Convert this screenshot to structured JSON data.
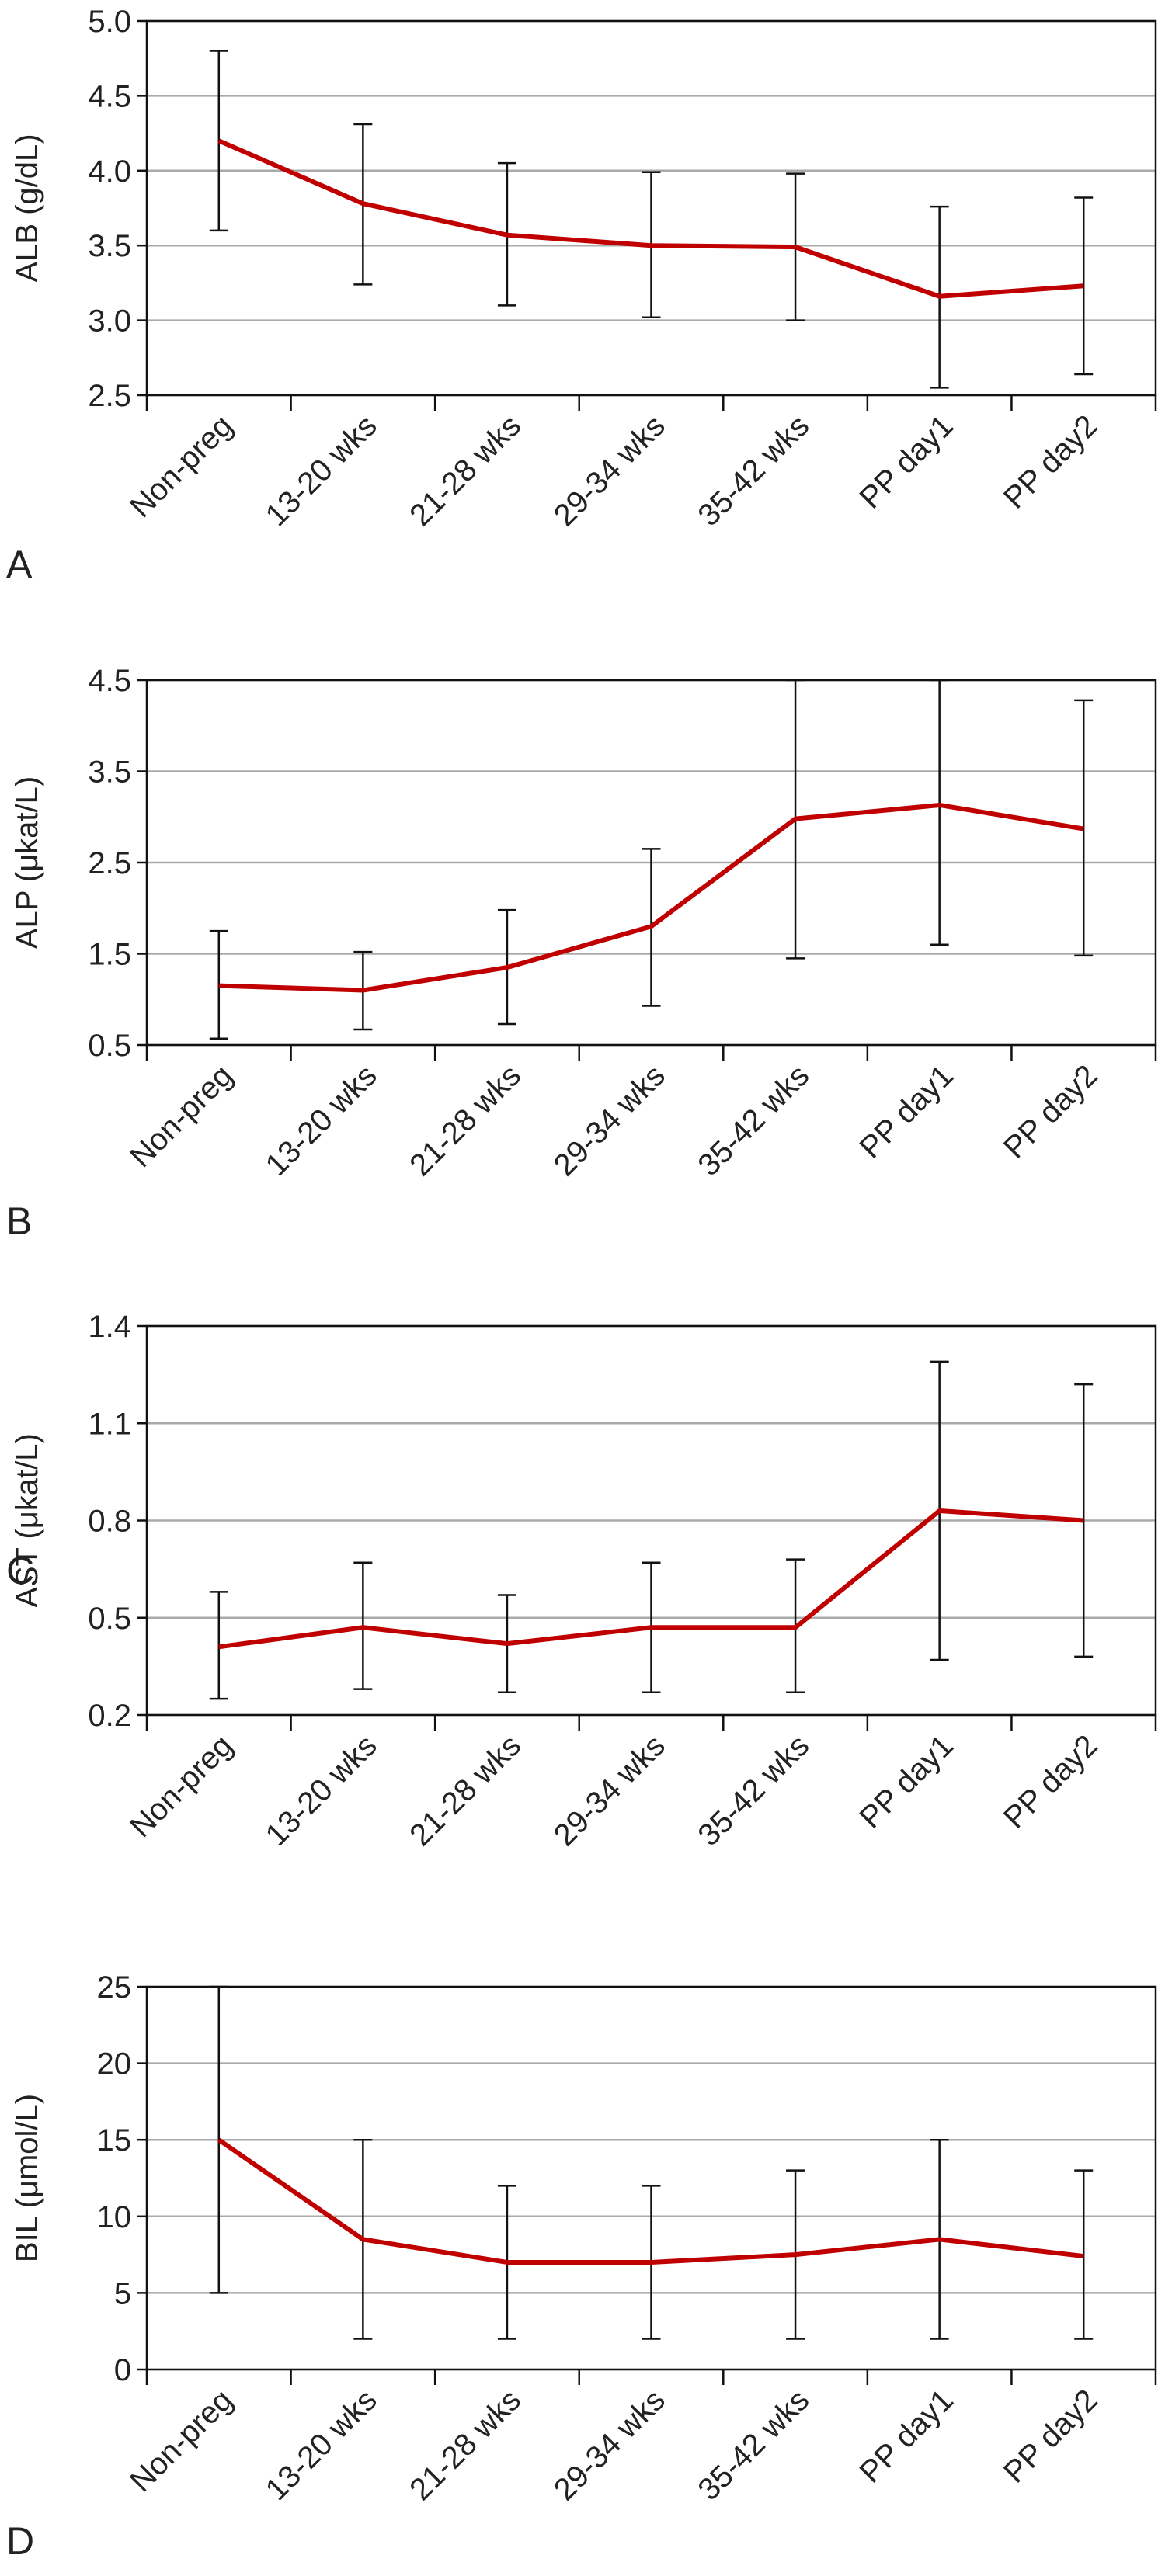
{
  "chart_data": [
    {
      "type": "line",
      "panel_label": "A",
      "y_label": "ALB (g/dL)",
      "color": "#c00000",
      "grid": true,
      "categories": [
        "Non-preg",
        "13-20 wks",
        "21-28 wks",
        "29-34 wks",
        "35-42 wks",
        "PP day1",
        "PP day2"
      ],
      "values": [
        4.2,
        3.78,
        3.57,
        3.5,
        3.49,
        3.16,
        3.23
      ],
      "lower": [
        3.6,
        3.24,
        3.1,
        3.02,
        3.0,
        2.55,
        2.64
      ],
      "upper": [
        4.8,
        4.31,
        4.05,
        3.99,
        3.98,
        3.76,
        3.82
      ],
      "ylim": [
        2.5,
        5.0
      ],
      "yticks": [
        2.5,
        {
          "value": 3,
          "label": "3.0"
        },
        3.5,
        {
          "value": 4,
          "label": "4.0"
        },
        4.5,
        {
          "value": 5,
          "label": "5.0"
        }
      ]
    },
    {
      "type": "line",
      "panel_label": "B",
      "y_label": "ALP (μkat/L)",
      "color": "#c00000",
      "grid": true,
      "categories": [
        "Non-preg",
        "13-20 wks",
        "21-28 wks",
        "29-34 wks",
        "35-42 wks",
        "PP day1",
        "PP day2"
      ],
      "values": [
        1.15,
        1.1,
        1.35,
        1.8,
        2.98,
        3.13,
        2.87
      ],
      "lower": [
        0.57,
        0.67,
        0.73,
        0.93,
        1.45,
        1.6,
        1.48
      ],
      "upper": [
        1.75,
        1.52,
        1.98,
        2.65,
        4.5,
        4.5,
        4.28
      ],
      "ylim": [
        0.5,
        4.5
      ],
      "yticks": [
        0.5,
        1.5,
        2.5,
        3.5,
        4.5
      ]
    },
    {
      "type": "line",
      "panel_label": "C",
      "y_label": "AST (μkat/L)",
      "color": "#c00000",
      "grid": true,
      "categories": [
        "Non-preg",
        "13-20 wks",
        "21-28 wks",
        "29-34 wks",
        "35-42 wks",
        "PP day1",
        "PP day2"
      ],
      "values": [
        0.41,
        0.47,
        0.42,
        0.47,
        0.47,
        0.83,
        0.8
      ],
      "lower": [
        0.25,
        0.28,
        0.27,
        0.27,
        0.27,
        0.37,
        0.38
      ],
      "upper": [
        0.58,
        0.67,
        0.57,
        0.67,
        0.68,
        1.29,
        1.22
      ],
      "ylim": [
        0.2,
        1.4
      ],
      "yticks": [
        0.2,
        0.5,
        0.8,
        1.1,
        1.4
      ]
    },
    {
      "type": "line",
      "panel_label": "D",
      "y_label": "BIL (μmol/L)",
      "color": "#c00000",
      "grid": true,
      "categories": [
        "Non-preg",
        "13-20 wks",
        "21-28 wks",
        "29-34 wks",
        "35-42 wks",
        "PP day1",
        "PP day2"
      ],
      "values": [
        15,
        8.5,
        7,
        7,
        7.5,
        8.5,
        7.4
      ],
      "lower": [
        5,
        2,
        2,
        2,
        2,
        2,
        2
      ],
      "upper": [
        25,
        15,
        12,
        12,
        13,
        15,
        13
      ],
      "ylim": [
        0,
        25
      ],
      "yticks": [
        0,
        5,
        10,
        15,
        20,
        25
      ]
    }
  ]
}
